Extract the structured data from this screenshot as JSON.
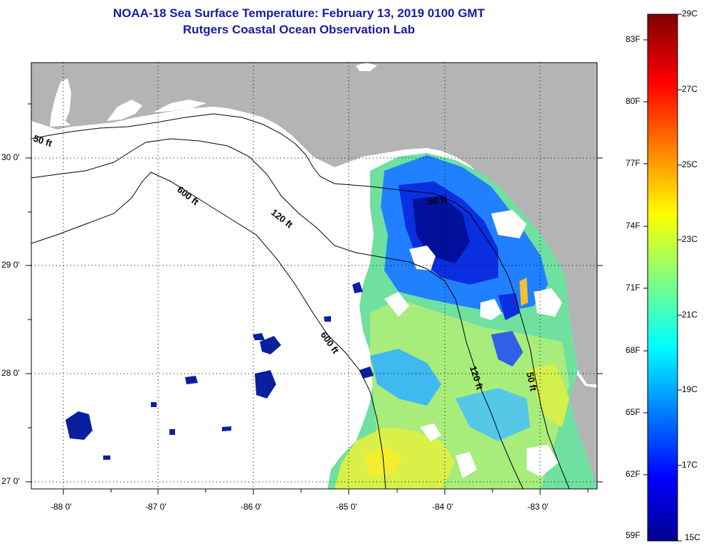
{
  "header": {
    "title": "NOAA-18 Sea Surface Temperature:  February 13, 2019 0100 GMT",
    "subtitle": "Rutgers Coastal Ocean Observation Lab"
  },
  "map": {
    "lon_labels": [
      "-88 0'",
      "-87 0'",
      "-86 0'",
      "-85 0'",
      "-84 0'",
      "-83 0'"
    ],
    "lat_labels": [
      "30 0'",
      "29 0'",
      "28 0'",
      "27 0'"
    ],
    "contour_labels": {
      "c50_west": "50 ft",
      "c600_north": "600 ft",
      "c120_north": "120 ft",
      "c50_north": "50 ft",
      "c600_south": "600 ft",
      "c120_south": "120 ft",
      "c50_south": "50 ft"
    },
    "land_color": "#b4b4b4",
    "no_data_color": "#ffffff"
  },
  "colorbar": {
    "fahrenheit_labels": [
      "83F",
      "80F",
      "77F",
      "74F",
      "71F",
      "68F",
      "65F",
      "62F",
      "59F"
    ],
    "celsius_labels": [
      "29C",
      "27C",
      "25C",
      "23C",
      "21C",
      "19C",
      "17C",
      "15C"
    ],
    "min_c": 15,
    "max_c": 29,
    "colors": [
      "#00008f",
      "#0000ff",
      "#00ffff",
      "#ffff00",
      "#ff0000",
      "#800000"
    ]
  }
}
